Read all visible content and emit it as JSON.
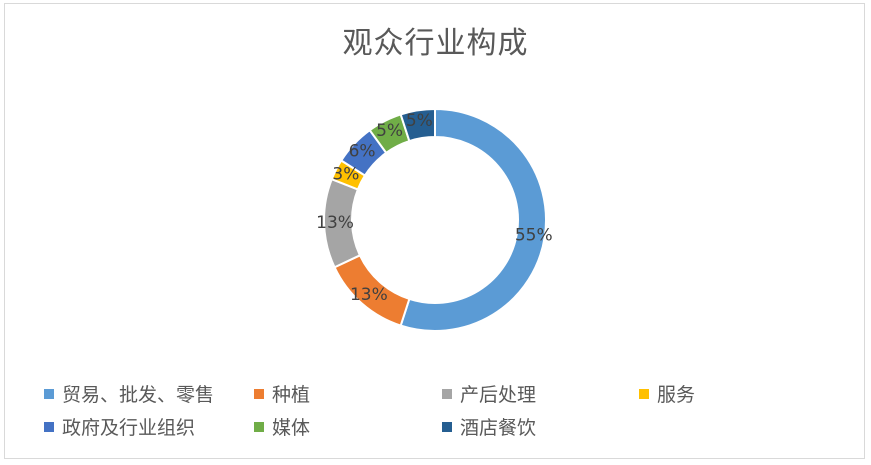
{
  "chart_data": {
    "type": "pie",
    "subtype": "doughnut",
    "title": "观众行业构成",
    "categories": [
      "贸易、批发、零售",
      "种植",
      "产后处理",
      "服务",
      "政府及行业组织",
      "媒体",
      "酒店餐饮"
    ],
    "values": [
      55,
      13,
      13,
      3,
      6,
      5,
      5
    ],
    "data_labels": [
      "55%",
      "13%",
      "13%",
      "3%",
      "6%",
      "5%",
      "5%"
    ],
    "colors": [
      "#5b9bd5",
      "#ed7d31",
      "#a5a5a5",
      "#ffc000",
      "#4472c4",
      "#70ad47",
      "#255e91"
    ],
    "legend_position": "bottom"
  }
}
